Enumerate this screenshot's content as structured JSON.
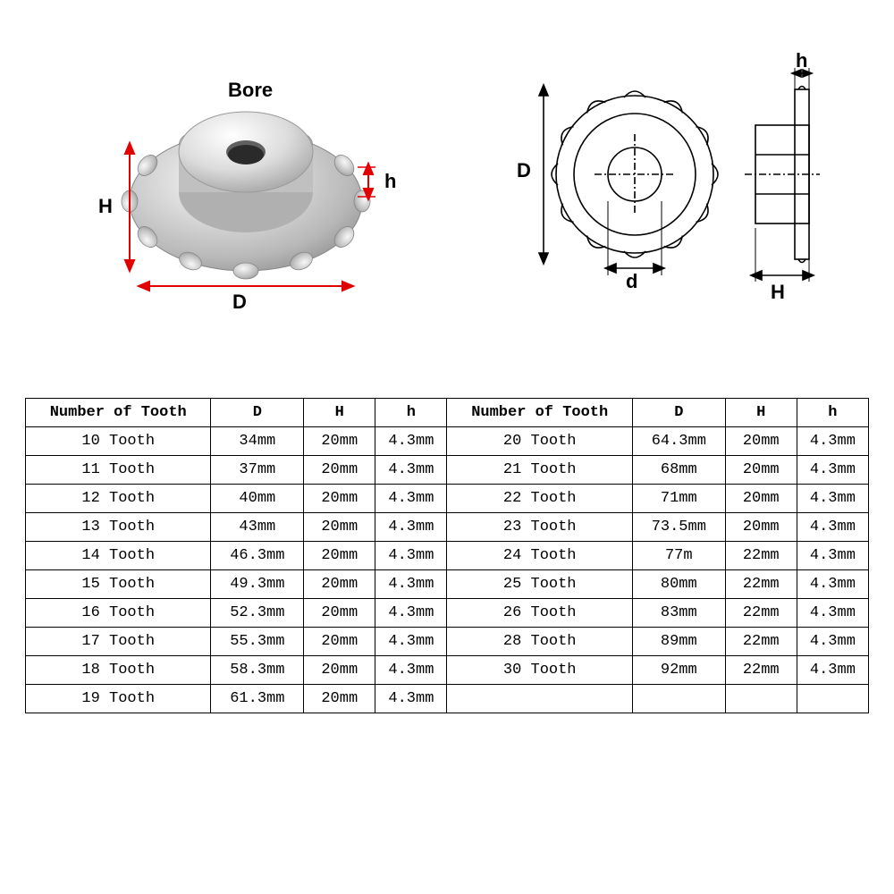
{
  "labels": {
    "bore": "Bore",
    "H": "H",
    "h": "h",
    "D": "D",
    "d": "d"
  },
  "table": {
    "headers": [
      "Number of Tooth",
      "D",
      "H",
      "h",
      "Number of Tooth",
      "D",
      "H",
      "h"
    ],
    "rows": [
      [
        "10 Tooth",
        "34mm",
        "20mm",
        "4.3mm",
        "20 Tooth",
        "64.3mm",
        "20mm",
        "4.3mm"
      ],
      [
        "11 Tooth",
        "37mm",
        "20mm",
        "4.3mm",
        "21 Tooth",
        "68mm",
        "20mm",
        "4.3mm"
      ],
      [
        "12 Tooth",
        "40mm",
        "20mm",
        "4.3mm",
        "22 Tooth",
        "71mm",
        "20mm",
        "4.3mm"
      ],
      [
        "13 Tooth",
        "43mm",
        "20mm",
        "4.3mm",
        "23 Tooth",
        "73.5mm",
        "20mm",
        "4.3mm"
      ],
      [
        "14 Tooth",
        "46.3mm",
        "20mm",
        "4.3mm",
        "24 Tooth",
        "77m",
        "22mm",
        "4.3mm"
      ],
      [
        "15 Tooth",
        "49.3mm",
        "20mm",
        "4.3mm",
        "25 Tooth",
        "80mm",
        "22mm",
        "4.3mm"
      ],
      [
        "16 Tooth",
        "52.3mm",
        "20mm",
        "4.3mm",
        "26 Tooth",
        "83mm",
        "22mm",
        "4.3mm"
      ],
      [
        "17 Tooth",
        "55.3mm",
        "20mm",
        "4.3mm",
        "28 Tooth",
        "89mm",
        "22mm",
        "4.3mm"
      ],
      [
        "18 Tooth",
        "58.3mm",
        "20mm",
        "4.3mm",
        "30 Tooth",
        "92mm",
        "22mm",
        "4.3mm"
      ],
      [
        "19 Tooth",
        "61.3mm",
        "20mm",
        "4.3mm",
        "",
        "",
        "",
        ""
      ]
    ]
  },
  "style": {
    "border_color": "#000000",
    "arrow_color": "#e00000",
    "background": "#ffffff",
    "table_font": "SimSun, Courier New, monospace",
    "table_fontsize": 17,
    "label_fontsize": 22
  }
}
